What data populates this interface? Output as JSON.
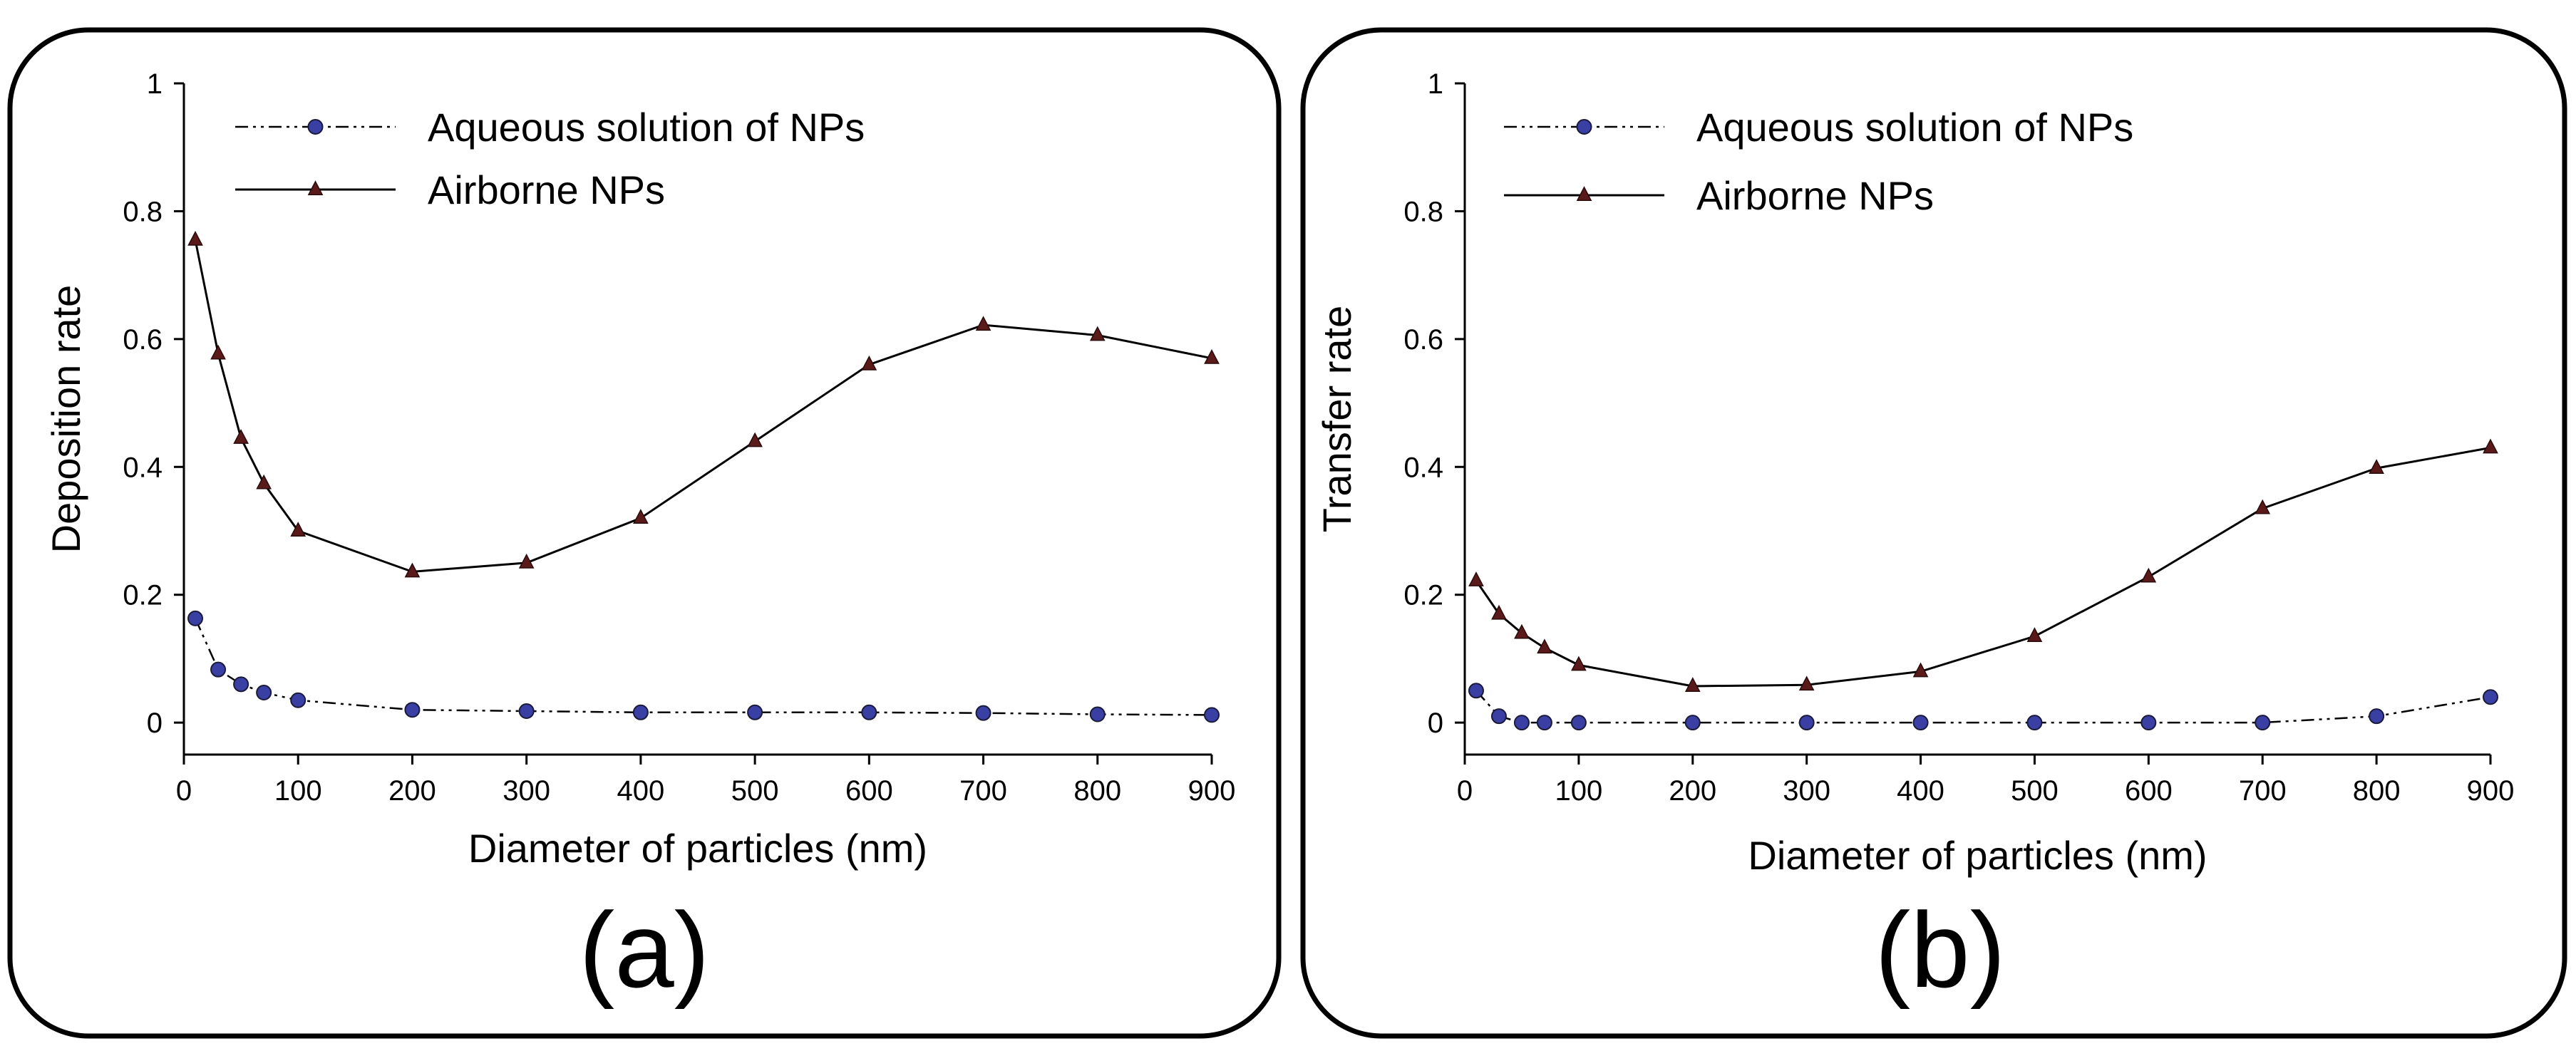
{
  "chart_data": [
    {
      "type": "line",
      "panel_label": "(a)",
      "xlabel": "Diameter of particles (nm)",
      "ylabel": "Deposition rate",
      "xlim": [
        0,
        900
      ],
      "ylim": [
        -0.05,
        1
      ],
      "x_ticks": [
        0,
        100,
        200,
        300,
        400,
        500,
        600,
        700,
        800,
        900
      ],
      "y_ticks": [
        0,
        0.2,
        0.4,
        0.6,
        0.8,
        1
      ],
      "y_tick_labels": [
        "0",
        "0.2",
        "0.4",
        "0.6",
        "0.8",
        "1"
      ],
      "legend_position": "top-left",
      "series": [
        {
          "name": "Aqueous solution of NPs",
          "style": "dash-dot-dot",
          "marker": "circle",
          "color": "#3a3fa3",
          "x": [
            10,
            30,
            50,
            70,
            100,
            200,
            300,
            400,
            500,
            600,
            700,
            800,
            900
          ],
          "y": [
            0.163,
            0.083,
            0.06,
            0.047,
            0.035,
            0.02,
            0.018,
            0.016,
            0.016,
            0.016,
            0.015,
            0.013,
            0.012
          ]
        },
        {
          "name": "Airborne NPs",
          "style": "solid",
          "marker": "triangle",
          "color": "#5a1a1a",
          "x": [
            10,
            30,
            50,
            70,
            100,
            200,
            300,
            400,
            500,
            600,
            700,
            800,
            900
          ],
          "y": [
            0.755,
            0.577,
            0.445,
            0.374,
            0.3,
            0.236,
            0.25,
            0.32,
            0.44,
            0.56,
            0.622,
            0.606,
            0.57
          ]
        }
      ]
    },
    {
      "type": "line",
      "panel_label": "(b)",
      "xlabel": "Diameter of particles (nm)",
      "ylabel": "Transfer rate",
      "xlim": [
        0,
        900
      ],
      "ylim": [
        -0.05,
        1
      ],
      "x_ticks": [
        0,
        100,
        200,
        300,
        400,
        500,
        600,
        700,
        800,
        900
      ],
      "y_ticks": [
        0,
        0.2,
        0.4,
        0.6,
        0.8,
        1
      ],
      "y_tick_labels": [
        "0",
        "0.2",
        "0.4",
        "0.6",
        "0.8",
        "1"
      ],
      "legend_position": "top-left",
      "series": [
        {
          "name": "Aqueous solution of NPs",
          "style": "dash-dot-dot",
          "marker": "circle",
          "color": "#3a3fa3",
          "x": [
            10,
            30,
            50,
            70,
            100,
            200,
            300,
            400,
            500,
            600,
            700,
            800,
            900
          ],
          "y": [
            0.05,
            0.01,
            0.0,
            0.0,
            0.0,
            0.0,
            0.0,
            0.0,
            0.0,
            0.0,
            0.0,
            0.01,
            0.04
          ]
        },
        {
          "name": "Airborne NPs",
          "style": "solid",
          "marker": "triangle",
          "color": "#5a1a1a",
          "x": [
            10,
            30,
            50,
            70,
            100,
            200,
            300,
            400,
            500,
            600,
            700,
            800,
            900
          ],
          "y": [
            0.222,
            0.17,
            0.14,
            0.117,
            0.09,
            0.057,
            0.059,
            0.08,
            0.135,
            0.228,
            0.335,
            0.398,
            0.43
          ]
        }
      ]
    }
  ]
}
